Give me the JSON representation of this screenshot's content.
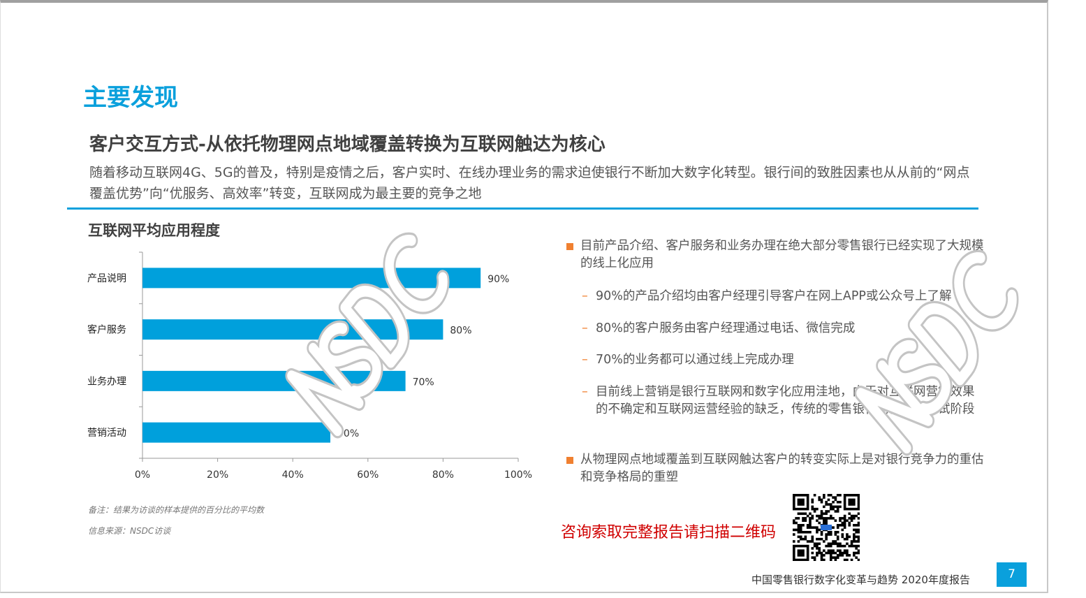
{
  "heading": "主要发现",
  "subheading": "客户交互方式-从依托物理网点地域覆盖转换为互联网触达为核心",
  "lead": "随着移动互联网4G、5G的普及，特别是疫情之后，客户实时、在线办理业务的需求迫使银行不断加大数字化转型。银行间的致胜因素也从从前的“网点覆盖优势”向“优服务、高效率”转变，互联网成为最主要的竞争之地",
  "chart_data": {
    "type": "bar",
    "orientation": "horizontal",
    "title": "互联网平均应用程度",
    "categories": [
      "产品说明",
      "客户服务",
      "业务办理",
      "营销活动"
    ],
    "values": [
      90,
      80,
      70,
      50
    ],
    "data_labels": [
      "90%",
      "80%",
      "70%",
      "50%"
    ],
    "xlim": [
      0,
      100
    ],
    "xticks": [
      "0%",
      "20%",
      "40%",
      "60%",
      "80%",
      "100%"
    ],
    "xlabel": "",
    "ylabel": "",
    "grid": false,
    "bar_color": "#00a0dc"
  },
  "notes": {
    "remark": "备注：结果为访谈的样本提供的百分比的平均数",
    "source": "信息来源：NSDC访谈"
  },
  "bullets": [
    {
      "text": "目前产品介绍、客户服务和业务办理在绝大部分零售银行已经实现了大规模的线上化应用",
      "sub": [
        "90%的产品介绍均由客户经理引导客户在网上APP或公众号上了解",
        "80%的客户服务由客户经理通过电话、微信完成",
        "70%的业务都可以通过线上完成办理",
        "目前线上营销是银行互联网和数字化应用洼地，由于对互联网营销效果的不确定和互联网运营经验的缺乏，传统的零售银行仍停留在尝试阶段"
      ]
    },
    {
      "text": "从物理网点地域覆盖到互联网触达客户的转变实际上是对银行竞争力的重估和竞争格局的重塑",
      "sub": []
    }
  ],
  "qr_cta": "咨询索取完整报告请扫描二维码",
  "footer": "中国零售银行数字化变革与趋势 2020年度报告",
  "page_number": "7",
  "watermark": "NSDC",
  "colors": {
    "accent": "#0aa0dc",
    "bullet": "#f08030",
    "cta": "#d00000"
  }
}
